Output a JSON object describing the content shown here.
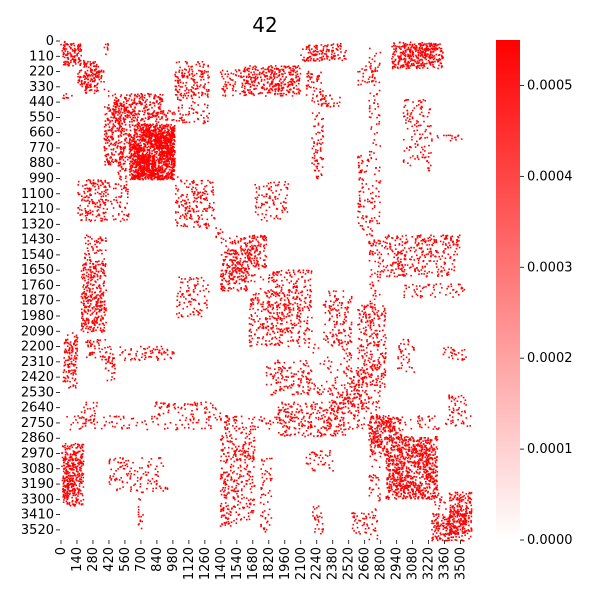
{
  "chart_data": {
    "type": "heatmap",
    "title": "42",
    "xlabel": "",
    "ylabel": "",
    "matrix_size": 3600,
    "x_tick_labels": [
      "0",
      "140",
      "280",
      "420",
      "560",
      "700",
      "840",
      "980",
      "1120",
      "1260",
      "1400",
      "1540",
      "1680",
      "1820",
      "1960",
      "2100",
      "2240",
      "2380",
      "2520",
      "2660",
      "2800",
      "2940",
      "3080",
      "3220",
      "3360",
      "3500"
    ],
    "y_tick_labels": [
      "0",
      "110",
      "220",
      "330",
      "440",
      "550",
      "660",
      "770",
      "880",
      "990",
      "1100",
      "1210",
      "1320",
      "1430",
      "1540",
      "1650",
      "1760",
      "1870",
      "1980",
      "2090",
      "2200",
      "2310",
      "2420",
      "2530",
      "2640",
      "2750",
      "2860",
      "2970",
      "3080",
      "3190",
      "3300",
      "3410",
      "3520"
    ],
    "colorbar": {
      "min": 0.0,
      "max": 0.00055,
      "ticks": [
        "0.0000",
        "0.0001",
        "0.0002",
        "0.0003",
        "0.0004",
        "0.0005"
      ],
      "tick_values": [
        0.0,
        0.0001,
        0.0002,
        0.0003,
        0.0004,
        0.0005
      ],
      "color_low": "#ffffff",
      "color_high": "#ff0000"
    },
    "approximate": true,
    "blocks": [
      [
        20,
        180,
        20,
        180,
        0.45
      ],
      [
        380,
        420,
        20,
        160,
        0.2
      ],
      [
        2900,
        3300,
        10,
        180,
        0.2
      ],
      [
        2100,
        2500,
        20,
        150,
        0.15
      ],
      [
        3000,
        3250,
        20,
        120,
        0.25
      ],
      [
        150,
        380,
        200,
        330,
        0.5
      ],
      [
        1000,
        1300,
        200,
        400,
        0.2
      ],
      [
        1400,
        1700,
        200,
        400,
        0.2
      ],
      [
        1800,
        2050,
        180,
        360,
        0.2
      ],
      [
        2150,
        2300,
        220,
        400,
        0.25
      ],
      [
        2200,
        2450,
        390,
        480,
        0.25
      ],
      [
        2600,
        2780,
        180,
        320,
        0.2
      ],
      [
        380,
        580,
        450,
        900,
        0.4
      ],
      [
        600,
        1000,
        640,
        1000,
        0.9
      ],
      [
        500,
        1000,
        500,
        640,
        0.15
      ],
      [
        1100,
        1350,
        1000,
        1300,
        0.2
      ],
      [
        1500,
        1800,
        1400,
        1650,
        0.35
      ],
      [
        1800,
        2200,
        1650,
        2100,
        0.2
      ],
      [
        1400,
        1600,
        1630,
        1700,
        0.2
      ],
      [
        2300,
        2550,
        1800,
        2200,
        0.2
      ],
      [
        2600,
        2850,
        1900,
        2500,
        0.2
      ],
      [
        2350,
        2650,
        2500,
        2700,
        0.25
      ],
      [
        2700,
        2950,
        2700,
        3000,
        0.3
      ],
      [
        2850,
        3300,
        2850,
        3300,
        0.35
      ],
      [
        3250,
        3550,
        3400,
        3600,
        0.55
      ],
      [
        3400,
        3550,
        2550,
        2700,
        0.25
      ],
      [
        3350,
        3550,
        2200,
        2300,
        0.2
      ],
      [
        3000,
        3550,
        1750,
        1850,
        0.15
      ],
      [
        3200,
        3550,
        680,
        720,
        0.2
      ],
      [
        20,
        200,
        2900,
        3350,
        0.45
      ],
      [
        180,
        400,
        1600,
        2100,
        0.35
      ],
      [
        20,
        150,
        2150,
        2450,
        0.3
      ],
      [
        500,
        1000,
        2200,
        2300,
        0.2
      ],
      [
        800,
        1000,
        2600,
        2700,
        0.2
      ],
      [
        1000,
        1400,
        2600,
        2700,
        0.15
      ],
      [
        1400,
        1550,
        2700,
        3500,
        0.2
      ],
      [
        1550,
        1700,
        2800,
        3450,
        0.2
      ],
      [
        2150,
        2400,
        2950,
        3100,
        0.15
      ],
      [
        2450,
        2550,
        2200,
        2400,
        0.15
      ],
      [
        150,
        600,
        1000,
        1300,
        0.15
      ],
      [
        1000,
        1300,
        1700,
        2000,
        0.15
      ],
      [
        3000,
        3200,
        420,
        900,
        0.15
      ],
      [
        480,
        1000,
        3200,
        3250,
        0.12
      ],
      [
        3100,
        3500,
        1400,
        1500,
        0.15
      ],
      [
        2700,
        2800,
        50,
        3600,
        0.12
      ],
      [
        2900,
        3000,
        1500,
        1700,
        0.12
      ]
    ]
  }
}
